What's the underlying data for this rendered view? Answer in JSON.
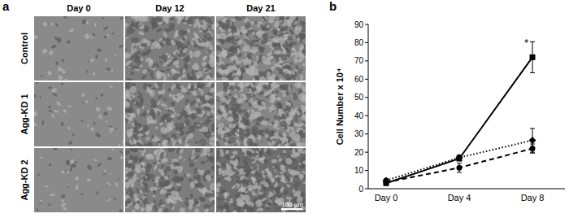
{
  "figure": {
    "panel_a": {
      "label": "a",
      "columns": [
        "Day 0",
        "Day 12",
        "Day 21"
      ],
      "rows": [
        "Control",
        "Agg-KD 1",
        "Agg-KD 2"
      ],
      "scale_bar": "100 µm"
    },
    "panel_b_label": "b"
  },
  "chart_data": {
    "type": "line",
    "y_label": "Cell Number x 10⁴",
    "categories": [
      "Day 0",
      "Day 4",
      "Day 8"
    ],
    "ylim": [
      0,
      90
    ],
    "yticks": [
      0,
      10,
      20,
      30,
      40,
      50,
      60,
      70,
      80,
      90
    ],
    "grid": false,
    "series": [
      {
        "color": "#000000",
        "line_style": "solid",
        "marker": "square",
        "values": [
          3,
          16.5,
          72
        ],
        "errors": [
          0.8,
          1.2,
          8.5
        ]
      },
      {
        "color": "#000000",
        "line_style": "dotted",
        "marker": "diamond",
        "values": [
          4.5,
          17,
          26.5
        ],
        "errors": [
          1,
          1.5,
          6.5
        ]
      },
      {
        "color": "#000000",
        "line_style": "dashed",
        "marker": "circle",
        "values": [
          3.5,
          11.5,
          22
        ],
        "errors": [
          0.8,
          2.5,
          2.5
        ]
      }
    ],
    "annotations": [
      {
        "text": "*",
        "series": 0,
        "point": 2
      }
    ]
  }
}
